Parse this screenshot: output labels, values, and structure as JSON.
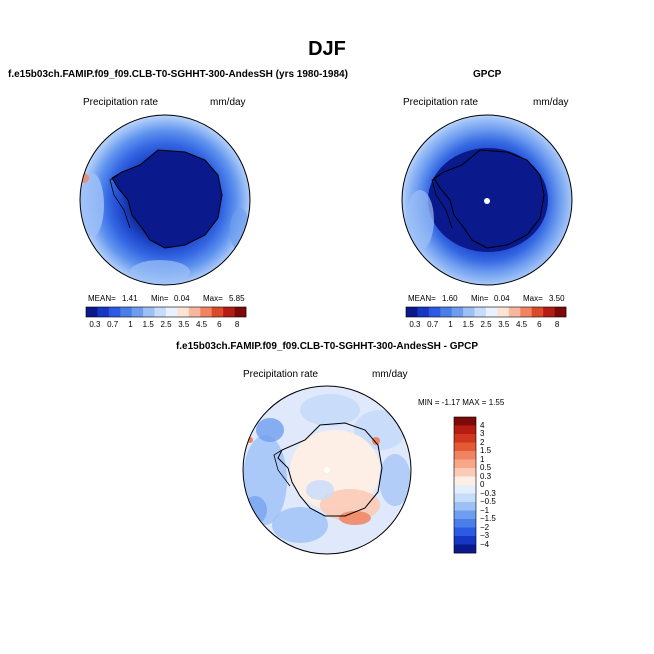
{
  "figure": {
    "title": "DJF"
  },
  "panels": {
    "model": {
      "title": "f.e15b03ch.FAMIP.f09_f09.CLB-T0-SGHHT-300-AndesSH (yrs 1980-1984)",
      "variable": "Precipitation rate",
      "units": "mm/day",
      "stats": {
        "mean_label": "MEAN=",
        "mean": "1.41",
        "min_label": "Min=",
        "min": "0.04",
        "max_label": "Max=",
        "max": "5.85"
      }
    },
    "obs": {
      "title": "GPCP",
      "variable": "Precipitation rate",
      "units": "mm/day",
      "stats": {
        "mean_label": "MEAN=",
        "mean": "1.60",
        "min_label": "Min=",
        "min": "0.04",
        "max_label": "Max=",
        "max": "3.50"
      }
    },
    "diff": {
      "title": "f.e15b03ch.FAMIP.f09_f09.CLB-T0-SGHHT-300-AndesSH - GPCP",
      "variable": "Precipitation rate",
      "units": "mm/day",
      "stats_text": "MIN =  -1.17 MAX =   1.55"
    }
  },
  "colorbars": {
    "precip": {
      "labels": [
        "0.3",
        "0.7",
        "1",
        "1.5",
        "2.5",
        "3.5",
        "4.5",
        "6",
        "8"
      ],
      "colors": [
        "#0a1a8c",
        "#1537c4",
        "#2a5be0",
        "#4a7ee8",
        "#6f9ef0",
        "#9dc0f7",
        "#c6dcfb",
        "#e8f1fd",
        "#fde2d6",
        "#f8b79c",
        "#f08461",
        "#dc4a2c",
        "#b51d12",
        "#7d0a08"
      ]
    },
    "diff": {
      "labels": [
        "4",
        "3",
        "2",
        "1.5",
        "1",
        "0.5",
        "0.3",
        "0",
        "−0.3",
        "−0.5",
        "−1",
        "−1.5",
        "−2",
        "−3",
        "−4"
      ],
      "colors": [
        "#7d0a08",
        "#b51d12",
        "#cf3720",
        "#e35a35",
        "#f08461",
        "#f8a888",
        "#fbcbb6",
        "#fdeee6",
        "#e4eefc",
        "#c6dcfb",
        "#9dc0f7",
        "#6f9ef0",
        "#4a7ee8",
        "#2a5be0",
        "#1537c4",
        "#0a1a8c"
      ]
    }
  }
}
